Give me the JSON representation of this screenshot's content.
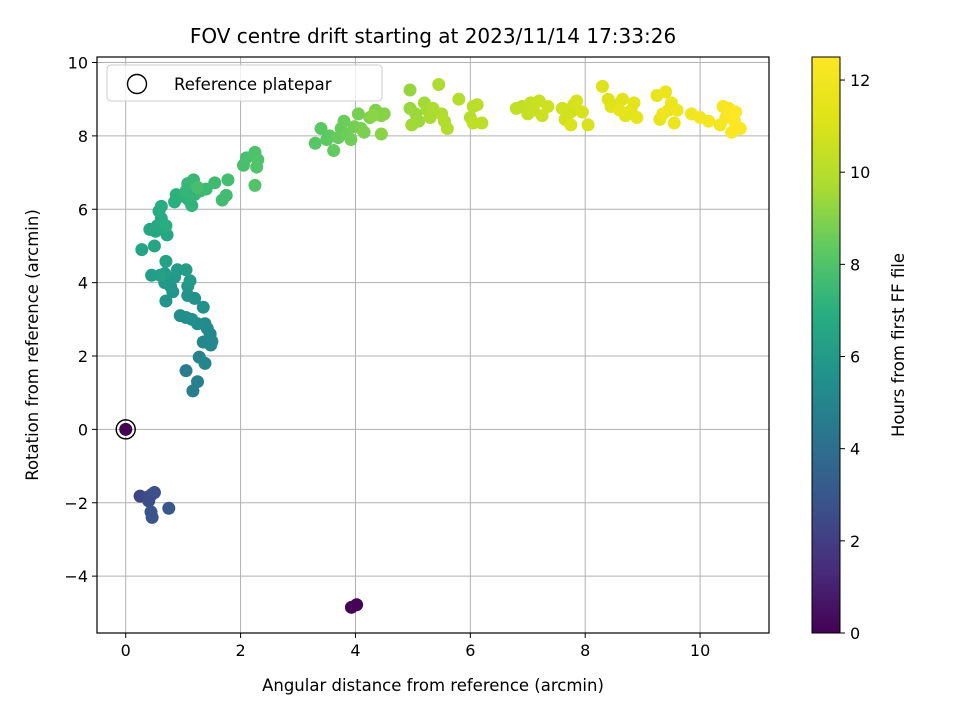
{
  "chart_data": {
    "type": "scatter",
    "title": "FOV centre drift starting at 2023/11/14 17:33:26",
    "xlabel": "Angular distance from reference (arcmin)",
    "ylabel": "Rotation from reference (arcmin)",
    "xlim": [
      -0.5,
      11.2
    ],
    "ylim": [
      -5.55,
      10.15
    ],
    "xticks": [
      0,
      2,
      4,
      6,
      8,
      10
    ],
    "yticks": [
      -4,
      -2,
      0,
      2,
      4,
      6,
      8,
      10
    ],
    "xtick_labels": [
      "0",
      "2",
      "4",
      "6",
      "8",
      "10"
    ],
    "ytick_labels": [
      "−4",
      "−2",
      "0",
      "2",
      "4",
      "6",
      "8",
      "10"
    ],
    "grid": true,
    "legend": {
      "entries": [
        "Reference platepar"
      ],
      "placement": "upper-left"
    },
    "colorbar": {
      "label": "Hours from first FF file",
      "colormap": "viridis",
      "range": [
        0,
        12.5
      ],
      "ticks": [
        0,
        2,
        4,
        6,
        8,
        10,
        12
      ],
      "tick_labels": [
        "0",
        "2",
        "4",
        "6",
        "8",
        "10",
        "12"
      ]
    },
    "reference_point": [
      0,
      0
    ],
    "points": [
      [
        0.0,
        0.0,
        0.0
      ],
      [
        3.93,
        -4.85,
        0.05
      ],
      [
        4.02,
        -4.78,
        0.1
      ],
      [
        0.25,
        -1.82,
        2.3
      ],
      [
        0.38,
        -1.85,
        2.4
      ],
      [
        0.45,
        -1.78,
        2.5
      ],
      [
        0.4,
        -1.95,
        2.6
      ],
      [
        0.5,
        -1.72,
        2.7
      ],
      [
        0.44,
        -2.25,
        2.8
      ],
      [
        0.46,
        -2.4,
        2.9
      ],
      [
        0.75,
        -2.15,
        3.0
      ],
      [
        1.05,
        1.6,
        4.6
      ],
      [
        1.17,
        1.05,
        4.7
      ],
      [
        1.25,
        1.3,
        4.8
      ],
      [
        1.28,
        1.97,
        4.9
      ],
      [
        1.38,
        1.8,
        5.0
      ],
      [
        1.35,
        2.38,
        5.05
      ],
      [
        1.48,
        2.3,
        5.1
      ],
      [
        1.5,
        2.4,
        5.15
      ],
      [
        1.47,
        2.6,
        5.2
      ],
      [
        1.42,
        2.75,
        5.25
      ],
      [
        1.38,
        2.88,
        5.3
      ],
      [
        1.25,
        2.88,
        5.35
      ],
      [
        1.05,
        3.05,
        5.4
      ],
      [
        0.95,
        3.1,
        5.45
      ],
      [
        1.15,
        3.0,
        5.5
      ],
      [
        1.35,
        3.33,
        5.55
      ],
      [
        1.2,
        3.57,
        5.6
      ],
      [
        1.08,
        3.65,
        5.65
      ],
      [
        0.7,
        3.5,
        5.7
      ],
      [
        0.82,
        3.75,
        5.75
      ],
      [
        0.78,
        3.9,
        5.8
      ],
      [
        1.08,
        3.9,
        5.85
      ],
      [
        0.68,
        4.0,
        5.9
      ],
      [
        0.85,
        4.15,
        5.95
      ],
      [
        1.12,
        4.05,
        6.0
      ],
      [
        0.9,
        4.35,
        6.05
      ],
      [
        1.05,
        4.35,
        6.1
      ],
      [
        0.68,
        4.25,
        6.15
      ],
      [
        0.45,
        4.2,
        6.2
      ],
      [
        0.6,
        4.2,
        6.25
      ],
      [
        0.7,
        4.58,
        6.3
      ],
      [
        0.28,
        4.9,
        6.4
      ],
      [
        0.5,
        5.0,
        6.45
      ],
      [
        0.42,
        5.45,
        6.5
      ],
      [
        0.52,
        5.4,
        6.55
      ],
      [
        0.72,
        5.3,
        6.6
      ],
      [
        0.55,
        5.55,
        6.65
      ],
      [
        0.62,
        5.75,
        6.7
      ],
      [
        0.58,
        5.95,
        6.8
      ],
      [
        0.62,
        6.08,
        6.85
      ],
      [
        0.7,
        5.55,
        6.9
      ],
      [
        0.85,
        6.2,
        7.0
      ],
      [
        0.88,
        6.4,
        7.05
      ],
      [
        1.0,
        6.35,
        7.1
      ],
      [
        1.1,
        6.25,
        7.15
      ],
      [
        1.15,
        6.1,
        7.2
      ],
      [
        1.2,
        6.4,
        7.25
      ],
      [
        1.05,
        6.5,
        7.3
      ],
      [
        1.08,
        6.7,
        7.35
      ],
      [
        1.18,
        6.8,
        7.4
      ],
      [
        1.3,
        6.5,
        7.45
      ],
      [
        1.4,
        6.55,
        7.5
      ],
      [
        1.55,
        6.72,
        7.55
      ],
      [
        1.68,
        6.25,
        7.6
      ],
      [
        1.75,
        6.38,
        7.65
      ],
      [
        1.78,
        6.8,
        7.7
      ],
      [
        1.25,
        6.6,
        7.75
      ],
      [
        2.05,
        7.2,
        7.8
      ],
      [
        2.1,
        7.4,
        7.85
      ],
      [
        2.25,
        7.55,
        7.9
      ],
      [
        2.3,
        7.35,
        7.95
      ],
      [
        2.28,
        7.15,
        8.0
      ],
      [
        2.25,
        6.65,
        8.05
      ],
      [
        3.3,
        7.8,
        8.2
      ],
      [
        3.4,
        8.2,
        8.25
      ],
      [
        3.5,
        7.9,
        8.3
      ],
      [
        3.55,
        8.0,
        8.35
      ],
      [
        3.62,
        7.6,
        8.4
      ],
      [
        3.7,
        7.95,
        8.45
      ],
      [
        3.75,
        8.2,
        8.5
      ],
      [
        3.8,
        8.4,
        8.55
      ],
      [
        3.85,
        8.05,
        8.6
      ],
      [
        3.92,
        7.9,
        8.65
      ],
      [
        3.98,
        8.25,
        8.7
      ],
      [
        4.05,
        8.6,
        8.75
      ],
      [
        4.1,
        8.2,
        8.8
      ],
      [
        4.15,
        8.1,
        8.85
      ],
      [
        4.25,
        8.5,
        8.9
      ],
      [
        4.35,
        8.7,
        8.95
      ],
      [
        4.45,
        8.55,
        9.0
      ],
      [
        4.5,
        8.6,
        9.05
      ],
      [
        4.45,
        8.05,
        9.1
      ],
      [
        4.3,
        8.55,
        9.12
      ],
      [
        4.95,
        9.25,
        9.3
      ],
      [
        4.95,
        8.75,
        9.35
      ],
      [
        5.05,
        8.6,
        9.4
      ],
      [
        5.1,
        8.4,
        9.45
      ],
      [
        4.98,
        8.3,
        9.5
      ],
      [
        5.2,
        8.9,
        9.55
      ],
      [
        5.25,
        8.7,
        9.6
      ],
      [
        5.3,
        8.5,
        9.65
      ],
      [
        5.35,
        8.75,
        9.7
      ],
      [
        5.45,
        9.4,
        9.75
      ],
      [
        5.5,
        8.6,
        9.8
      ],
      [
        5.55,
        8.4,
        9.85
      ],
      [
        5.6,
        8.2,
        9.9
      ],
      [
        5.8,
        9.0,
        9.95
      ],
      [
        6.0,
        8.5,
        10.0
      ],
      [
        6.05,
        8.8,
        10.05
      ],
      [
        6.12,
        8.85,
        10.1
      ],
      [
        6.2,
        8.35,
        10.15
      ],
      [
        6.05,
        8.35,
        10.2
      ],
      [
        6.8,
        8.75,
        10.3
      ],
      [
        6.9,
        8.8,
        10.35
      ],
      [
        7.0,
        8.6,
        10.4
      ],
      [
        7.05,
        8.9,
        10.45
      ],
      [
        7.1,
        8.7,
        10.5
      ],
      [
        7.2,
        8.95,
        10.55
      ],
      [
        7.25,
        8.55,
        10.6
      ],
      [
        7.35,
        8.8,
        10.65
      ],
      [
        7.6,
        8.75,
        10.7
      ],
      [
        7.65,
        8.45,
        10.75
      ],
      [
        7.75,
        8.65,
        10.8
      ],
      [
        7.8,
        8.85,
        10.85
      ],
      [
        7.85,
        8.95,
        10.9
      ],
      [
        7.95,
        8.65,
        10.95
      ],
      [
        8.05,
        8.3,
        11.0
      ],
      [
        7.75,
        8.3,
        11.05
      ],
      [
        8.3,
        9.35,
        11.1
      ],
      [
        8.4,
        9.0,
        11.15
      ],
      [
        8.45,
        8.8,
        11.2
      ],
      [
        8.55,
        8.85,
        11.25
      ],
      [
        8.65,
        9.0,
        11.3
      ],
      [
        8.7,
        8.55,
        11.35
      ],
      [
        8.8,
        8.7,
        11.4
      ],
      [
        8.85,
        8.9,
        11.45
      ],
      [
        8.9,
        8.5,
        11.5
      ],
      [
        8.6,
        8.7,
        11.55
      ],
      [
        9.25,
        9.1,
        11.6
      ],
      [
        9.3,
        8.45,
        11.65
      ],
      [
        9.4,
        9.2,
        11.7
      ],
      [
        9.45,
        8.7,
        11.75
      ],
      [
        9.5,
        8.9,
        11.8
      ],
      [
        9.55,
        8.35,
        11.85
      ],
      [
        9.6,
        8.7,
        11.9
      ],
      [
        9.35,
        8.6,
        11.95
      ],
      [
        9.85,
        8.6,
        12.0
      ],
      [
        10.0,
        8.5,
        12.05
      ],
      [
        10.15,
        8.4,
        12.1
      ],
      [
        10.35,
        8.3,
        12.15
      ],
      [
        10.4,
        8.8,
        12.2
      ],
      [
        10.45,
        8.5,
        12.25
      ],
      [
        10.5,
        8.75,
        12.3
      ],
      [
        10.55,
        8.1,
        12.35
      ],
      [
        10.6,
        8.4,
        12.4
      ],
      [
        10.7,
        8.2,
        12.45
      ],
      [
        10.62,
        8.65,
        12.5
      ]
    ]
  }
}
